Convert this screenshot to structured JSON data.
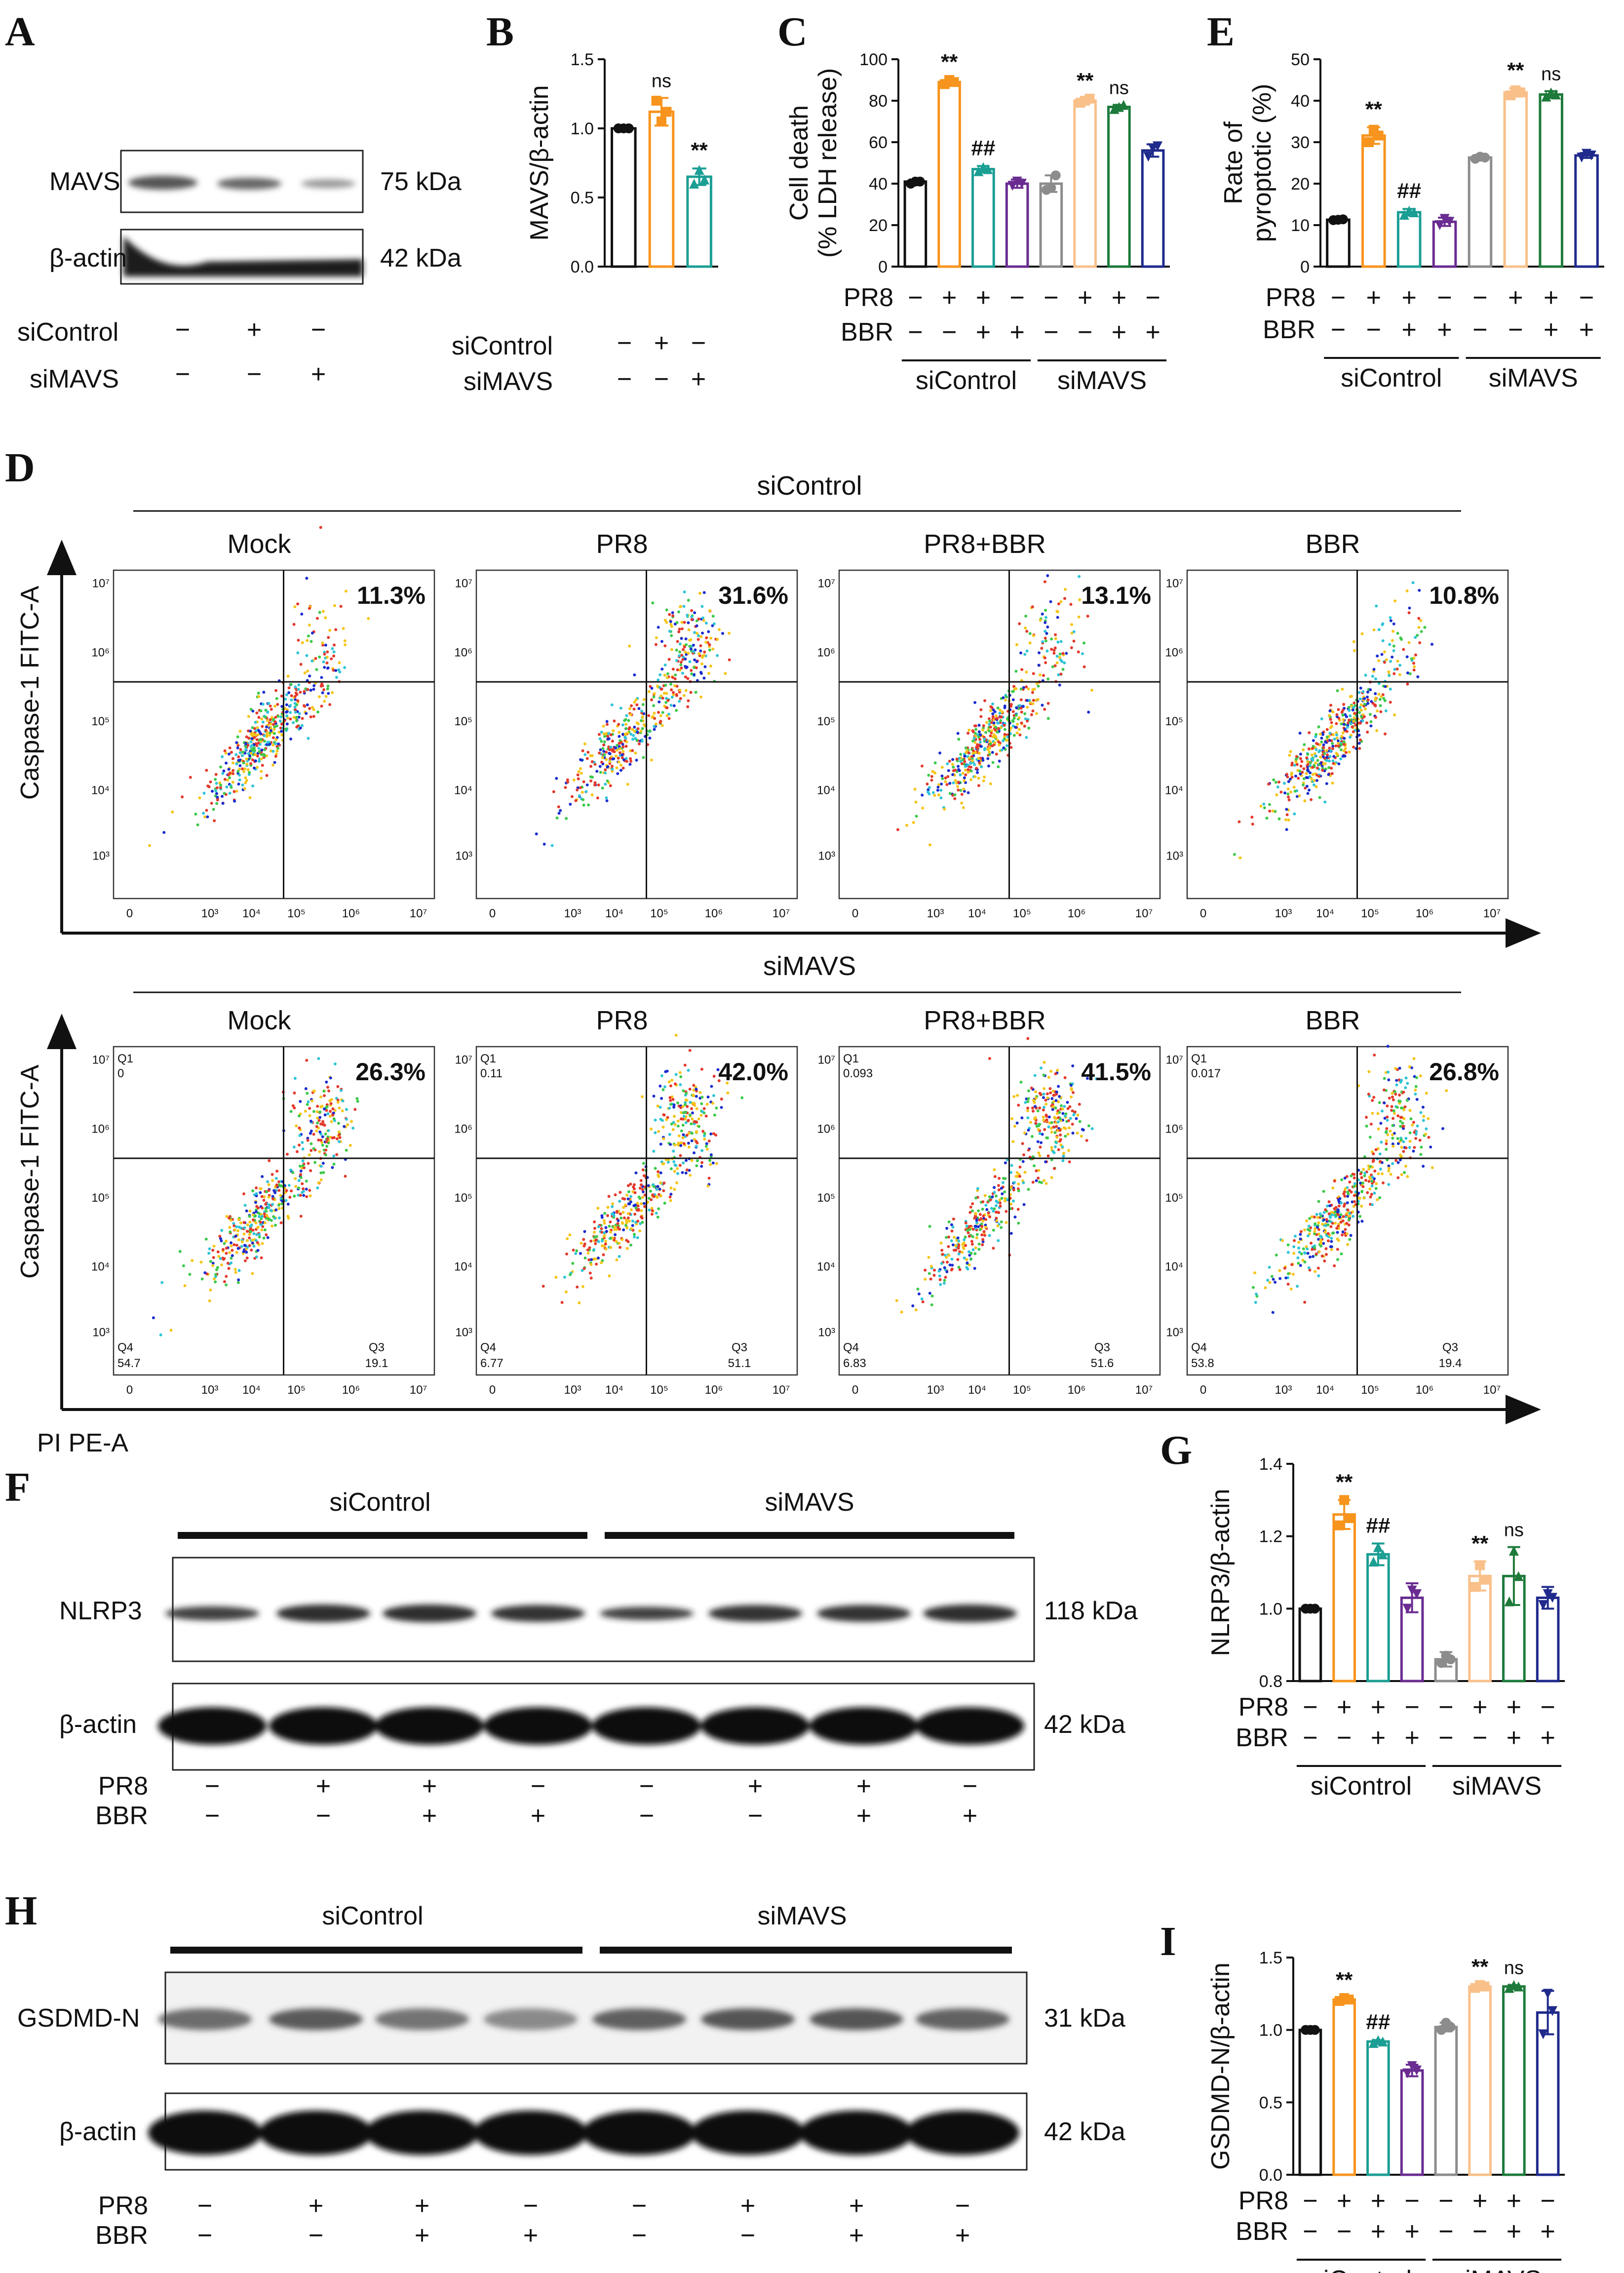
{
  "colors": {
    "black": "#111111",
    "orange": "#f7941d",
    "teal": "#1b9e94",
    "purple": "#6a2c91",
    "gray": "#8c8c8c",
    "light_orange": "#f9c08a",
    "green": "#1d7a3a",
    "navy": "#1f2a8c"
  },
  "panel_A": {
    "letter": "A",
    "rows": [
      {
        "name": "MAVS",
        "size": "75 kDa"
      },
      {
        "name": "β-actin",
        "size": "42 kDa"
      }
    ],
    "conditions": [
      {
        "name": "siControl",
        "signs": [
          "−",
          "+",
          "−"
        ]
      },
      {
        "name": "siMAVS",
        "signs": [
          "−",
          "−",
          "+"
        ]
      }
    ]
  },
  "panel_B": {
    "letter": "B",
    "conditions": [
      {
        "name": "siControl",
        "signs": [
          "−",
          "+",
          "−"
        ]
      },
      {
        "name": "siMAVS",
        "signs": [
          "−",
          "−",
          "+"
        ]
      }
    ]
  },
  "panel_C": {
    "letter": "C",
    "groups": [
      "siControl",
      "siMAVS"
    ]
  },
  "panel_E": {
    "letter": "E",
    "groups": [
      "siControl",
      "siMAVS"
    ]
  },
  "panel_G": {
    "letter": "G",
    "groups": [
      "siControl",
      "siMAVS"
    ]
  },
  "panel_I": {
    "letter": "I",
    "groups": [
      "siControl",
      "siMAVS"
    ]
  },
  "treatment_rows": [
    {
      "name": "PR8",
      "signs": [
        "−",
        "+",
        "+",
        "−",
        "−",
        "+",
        "+",
        "−"
      ]
    },
    {
      "name": "BBR",
      "signs": [
        "−",
        "−",
        "+",
        "+",
        "−",
        "−",
        "+",
        "+"
      ]
    }
  ],
  "chart_data": [
    {
      "id": "B",
      "type": "bar",
      "ylabel": "MAVS/β-actin",
      "ylim": [
        0,
        1.5
      ],
      "yticks": [
        "0.0",
        "0.5",
        "1.0",
        "1.5"
      ],
      "categories": [
        "siControl−/siMAVS−",
        "siControl+",
        "siMAVS+"
      ],
      "values": [
        1.0,
        1.12,
        0.65
      ],
      "errors": [
        0.0,
        0.1,
        0.06
      ],
      "colors": [
        "black",
        "orange",
        "teal"
      ],
      "points": [
        [
          1.0,
          1.0,
          1.0
        ],
        [
          1.2,
          1.05,
          1.12
        ],
        [
          0.6,
          0.7,
          0.63
        ]
      ],
      "annotations": [
        "",
        "ns",
        "**"
      ]
    },
    {
      "id": "C",
      "type": "bar",
      "ylabel": "Cell death (% LDH release)",
      "ylim": [
        0,
        100
      ],
      "yticks": [
        "0",
        "20",
        "40",
        "60",
        "80",
        "100"
      ],
      "values": [
        41,
        89,
        47,
        40,
        40,
        80,
        77,
        56
      ],
      "errors": [
        1,
        1,
        1.5,
        2,
        4,
        1,
        1,
        3
      ],
      "colors": [
        "black",
        "orange",
        "teal",
        "purple",
        "gray",
        "light_orange",
        "green",
        "navy"
      ],
      "points": [
        [
          40,
          41,
          41
        ],
        [
          88,
          90,
          89
        ],
        [
          46,
          48,
          47
        ],
        [
          39,
          41,
          40
        ],
        [
          37,
          38,
          44
        ],
        [
          79,
          80,
          81
        ],
        [
          76,
          77,
          78
        ],
        [
          53,
          57,
          58
        ]
      ],
      "annotations": [
        "",
        "**",
        "##",
        "",
        "",
        "**",
        "ns",
        ""
      ]
    },
    {
      "id": "E",
      "type": "bar",
      "ylabel": "Rate of pyroptotic (%)",
      "ylim": [
        0,
        50
      ],
      "yticks": [
        "0",
        "10",
        "20",
        "30",
        "40",
        "50"
      ],
      "values": [
        11.3,
        31.6,
        13.1,
        10.8,
        26.3,
        42.0,
        41.5,
        26.8
      ],
      "errors": [
        0.3,
        2,
        0.8,
        1,
        0.5,
        1,
        0.8,
        0.6
      ],
      "colors": [
        "black",
        "orange",
        "teal",
        "purple",
        "gray",
        "light_orange",
        "green",
        "navy"
      ],
      "points": [
        [
          11.2,
          11.3,
          11.4
        ],
        [
          30,
          33,
          31.6
        ],
        [
          12.5,
          13.5,
          13.1
        ],
        [
          10,
          11.5,
          10.8
        ],
        [
          26,
          26.5,
          26.3
        ],
        [
          41.3,
          42.5,
          42
        ],
        [
          41,
          42,
          41.5
        ],
        [
          26.3,
          27.2,
          26.8
        ]
      ],
      "annotations": [
        "",
        "**",
        "##",
        "",
        "",
        "**",
        "ns",
        ""
      ]
    },
    {
      "id": "G",
      "type": "bar",
      "ylabel": "NLRP3/β-actin",
      "ylim": [
        0.8,
        1.4
      ],
      "yticks": [
        "0.8",
        "1.0",
        "1.2",
        "1.4"
      ],
      "values": [
        1.0,
        1.26,
        1.15,
        1.03,
        0.86,
        1.09,
        1.09,
        1.03
      ],
      "errors": [
        0,
        0.04,
        0.03,
        0.04,
        0.02,
        0.04,
        0.08,
        0.03
      ],
      "colors": [
        "black",
        "orange",
        "teal",
        "purple",
        "gray",
        "light_orange",
        "green",
        "navy"
      ],
      "points": [
        [
          1.0,
          1.0,
          1.0
        ],
        [
          1.23,
          1.3,
          1.25
        ],
        [
          1.13,
          1.17,
          1.15
        ],
        [
          1.0,
          1.05,
          1.04
        ],
        [
          0.85,
          0.87,
          0.86
        ],
        [
          1.06,
          1.12,
          1.08
        ],
        [
          1.02,
          1.16,
          1.09
        ],
        [
          1.01,
          1.04,
          1.03
        ]
      ],
      "annotations": [
        "",
        "**",
        "##",
        "",
        "",
        "**",
        "ns",
        ""
      ]
    },
    {
      "id": "I",
      "type": "bar",
      "ylabel": "GSDMD-N/β-actin",
      "ylim": [
        0,
        1.5
      ],
      "yticks": [
        "0.0",
        "0.5",
        "1.0",
        "1.5"
      ],
      "values": [
        1.0,
        1.21,
        0.92,
        0.72,
        1.02,
        1.3,
        1.3,
        1.12
      ],
      "errors": [
        0,
        0.01,
        0.01,
        0.04,
        0.03,
        0.01,
        0.01,
        0.15
      ],
      "colors": [
        "black",
        "orange",
        "teal",
        "purple",
        "gray",
        "light_orange",
        "green",
        "navy"
      ],
      "points": [
        [
          1.0,
          1.0,
          1.0
        ],
        [
          1.2,
          1.22,
          1.21
        ],
        [
          0.91,
          0.93,
          0.92
        ],
        [
          0.7,
          0.75,
          0.72
        ],
        [
          1.0,
          1.05,
          1.02
        ],
        [
          1.29,
          1.31,
          1.3
        ],
        [
          1.29,
          1.31,
          1.3
        ],
        [
          0.97,
          1.25,
          1.13
        ]
      ],
      "annotations": [
        "",
        "**",
        "##",
        "",
        "",
        "**",
        "ns",
        ""
      ]
    }
  ],
  "panel_D": {
    "letter": "D",
    "ylabel": "Caspase-1 FITC-A",
    "xlabel": "PI PE-A",
    "ticks_y": [
      "10⁷",
      "10⁶",
      "10⁵",
      "10⁴",
      "10³"
    ],
    "ticks_x": [
      "0",
      "10³",
      "10⁴",
      "10⁵",
      "10⁶",
      "10⁷"
    ],
    "rows": [
      {
        "group": "siControl",
        "plots": [
          {
            "title": "Mock",
            "pct": "11.3%"
          },
          {
            "title": "PR8",
            "pct": "31.6%"
          },
          {
            "title": "PR8+BBR",
            "pct": "13.1%"
          },
          {
            "title": "BBR",
            "pct": "10.8%"
          }
        ]
      },
      {
        "group": "siMAVS",
        "plots": [
          {
            "title": "Mock",
            "pct": "26.3%",
            "q1": "Q1",
            "q1v": "0",
            "q4": "Q4",
            "q4v": "54.7",
            "q3": "Q3",
            "q3v": "19.1"
          },
          {
            "title": "PR8",
            "pct": "42.0%",
            "q1": "Q1",
            "q1v": "0.11",
            "q4": "Q4",
            "q4v": "6.77",
            "q3": "Q3",
            "q3v": "51.1"
          },
          {
            "title": "PR8+BBR",
            "pct": "41.5%",
            "q1": "Q1",
            "q1v": "0.093",
            "q4": "Q4",
            "q4v": "6.83",
            "q3": "Q3",
            "q3v": "51.6"
          },
          {
            "title": "BBR",
            "pct": "26.8%",
            "q1": "Q1",
            "q1v": "0.017",
            "q4": "Q4",
            "q4v": "53.8",
            "q3": "Q3",
            "q3v": "19.4"
          }
        ]
      }
    ]
  },
  "panel_F": {
    "letter": "F",
    "groups": [
      "siControl",
      "siMAVS"
    ],
    "rows": [
      {
        "name": "NLRP3",
        "size": "118 kDa"
      },
      {
        "name": "β-actin",
        "size": "42 kDa"
      }
    ]
  },
  "panel_H": {
    "letter": "H",
    "groups": [
      "siControl",
      "siMAVS"
    ],
    "rows": [
      {
        "name": "GSDMD-N",
        "size": "31 kDa"
      },
      {
        "name": "β-actin",
        "size": "42 kDa"
      }
    ]
  }
}
